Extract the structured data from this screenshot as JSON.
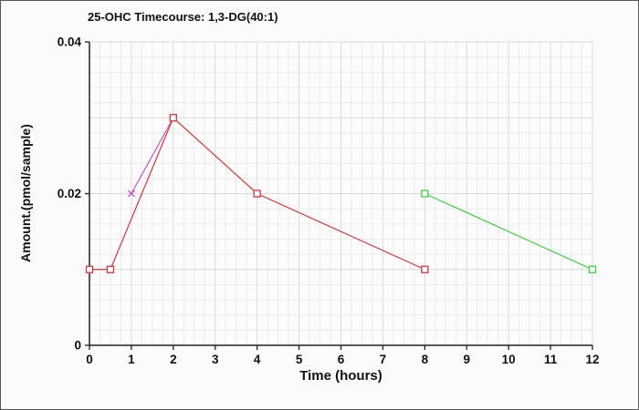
{
  "chart_data": {
    "type": "line",
    "title": "25-OHC Timecourse: 1,3-DG(40:1)",
    "xlabel": "Time (hours)",
    "ylabel": "Amount.(pmol/sample)",
    "xlim": [
      0,
      12
    ],
    "ylim": [
      0,
      0.04
    ],
    "xticks": [
      {
        "v": 0,
        "label": "0"
      },
      {
        "v": 1,
        "label": "1"
      },
      {
        "v": 2,
        "label": "2"
      },
      {
        "v": 3,
        "label": "3"
      },
      {
        "v": 4,
        "label": "4"
      },
      {
        "v": 5,
        "label": "5"
      },
      {
        "v": 6,
        "label": "6"
      },
      {
        "v": 7,
        "label": "7"
      },
      {
        "v": 8,
        "label": "8"
      },
      {
        "v": 9,
        "label": "9"
      },
      {
        "v": 10,
        "label": "10"
      },
      {
        "v": 11,
        "label": "11"
      },
      {
        "v": 12,
        "label": "12"
      }
    ],
    "yticks": [
      {
        "v": 0,
        "label": "0"
      },
      {
        "v": 0.02,
        "label": "0.02"
      },
      {
        "v": 0.04,
        "label": "0.04"
      }
    ],
    "grid": {
      "x_minor": 0.25,
      "y_minor": 0.002,
      "minor_color": "#ebebeb",
      "major_color": "#dadada"
    },
    "axis_color": "#222222",
    "background_color": "#fcfcfc",
    "series": [
      {
        "name": "magenta-series",
        "color": "#c653c6",
        "marker": "x",
        "x": [
          1,
          2
        ],
        "y": [
          0.02,
          0.03
        ]
      },
      {
        "name": "red-series",
        "color": "#cd3a3a",
        "marker": "square",
        "x": [
          0,
          0.5,
          2,
          4,
          8
        ],
        "y": [
          0.01,
          0.01,
          0.03,
          0.02,
          0.01
        ]
      },
      {
        "name": "green-series",
        "color": "#44cc44",
        "marker": "square",
        "x": [
          8,
          12
        ],
        "y": [
          0.02,
          0.01
        ]
      }
    ]
  }
}
